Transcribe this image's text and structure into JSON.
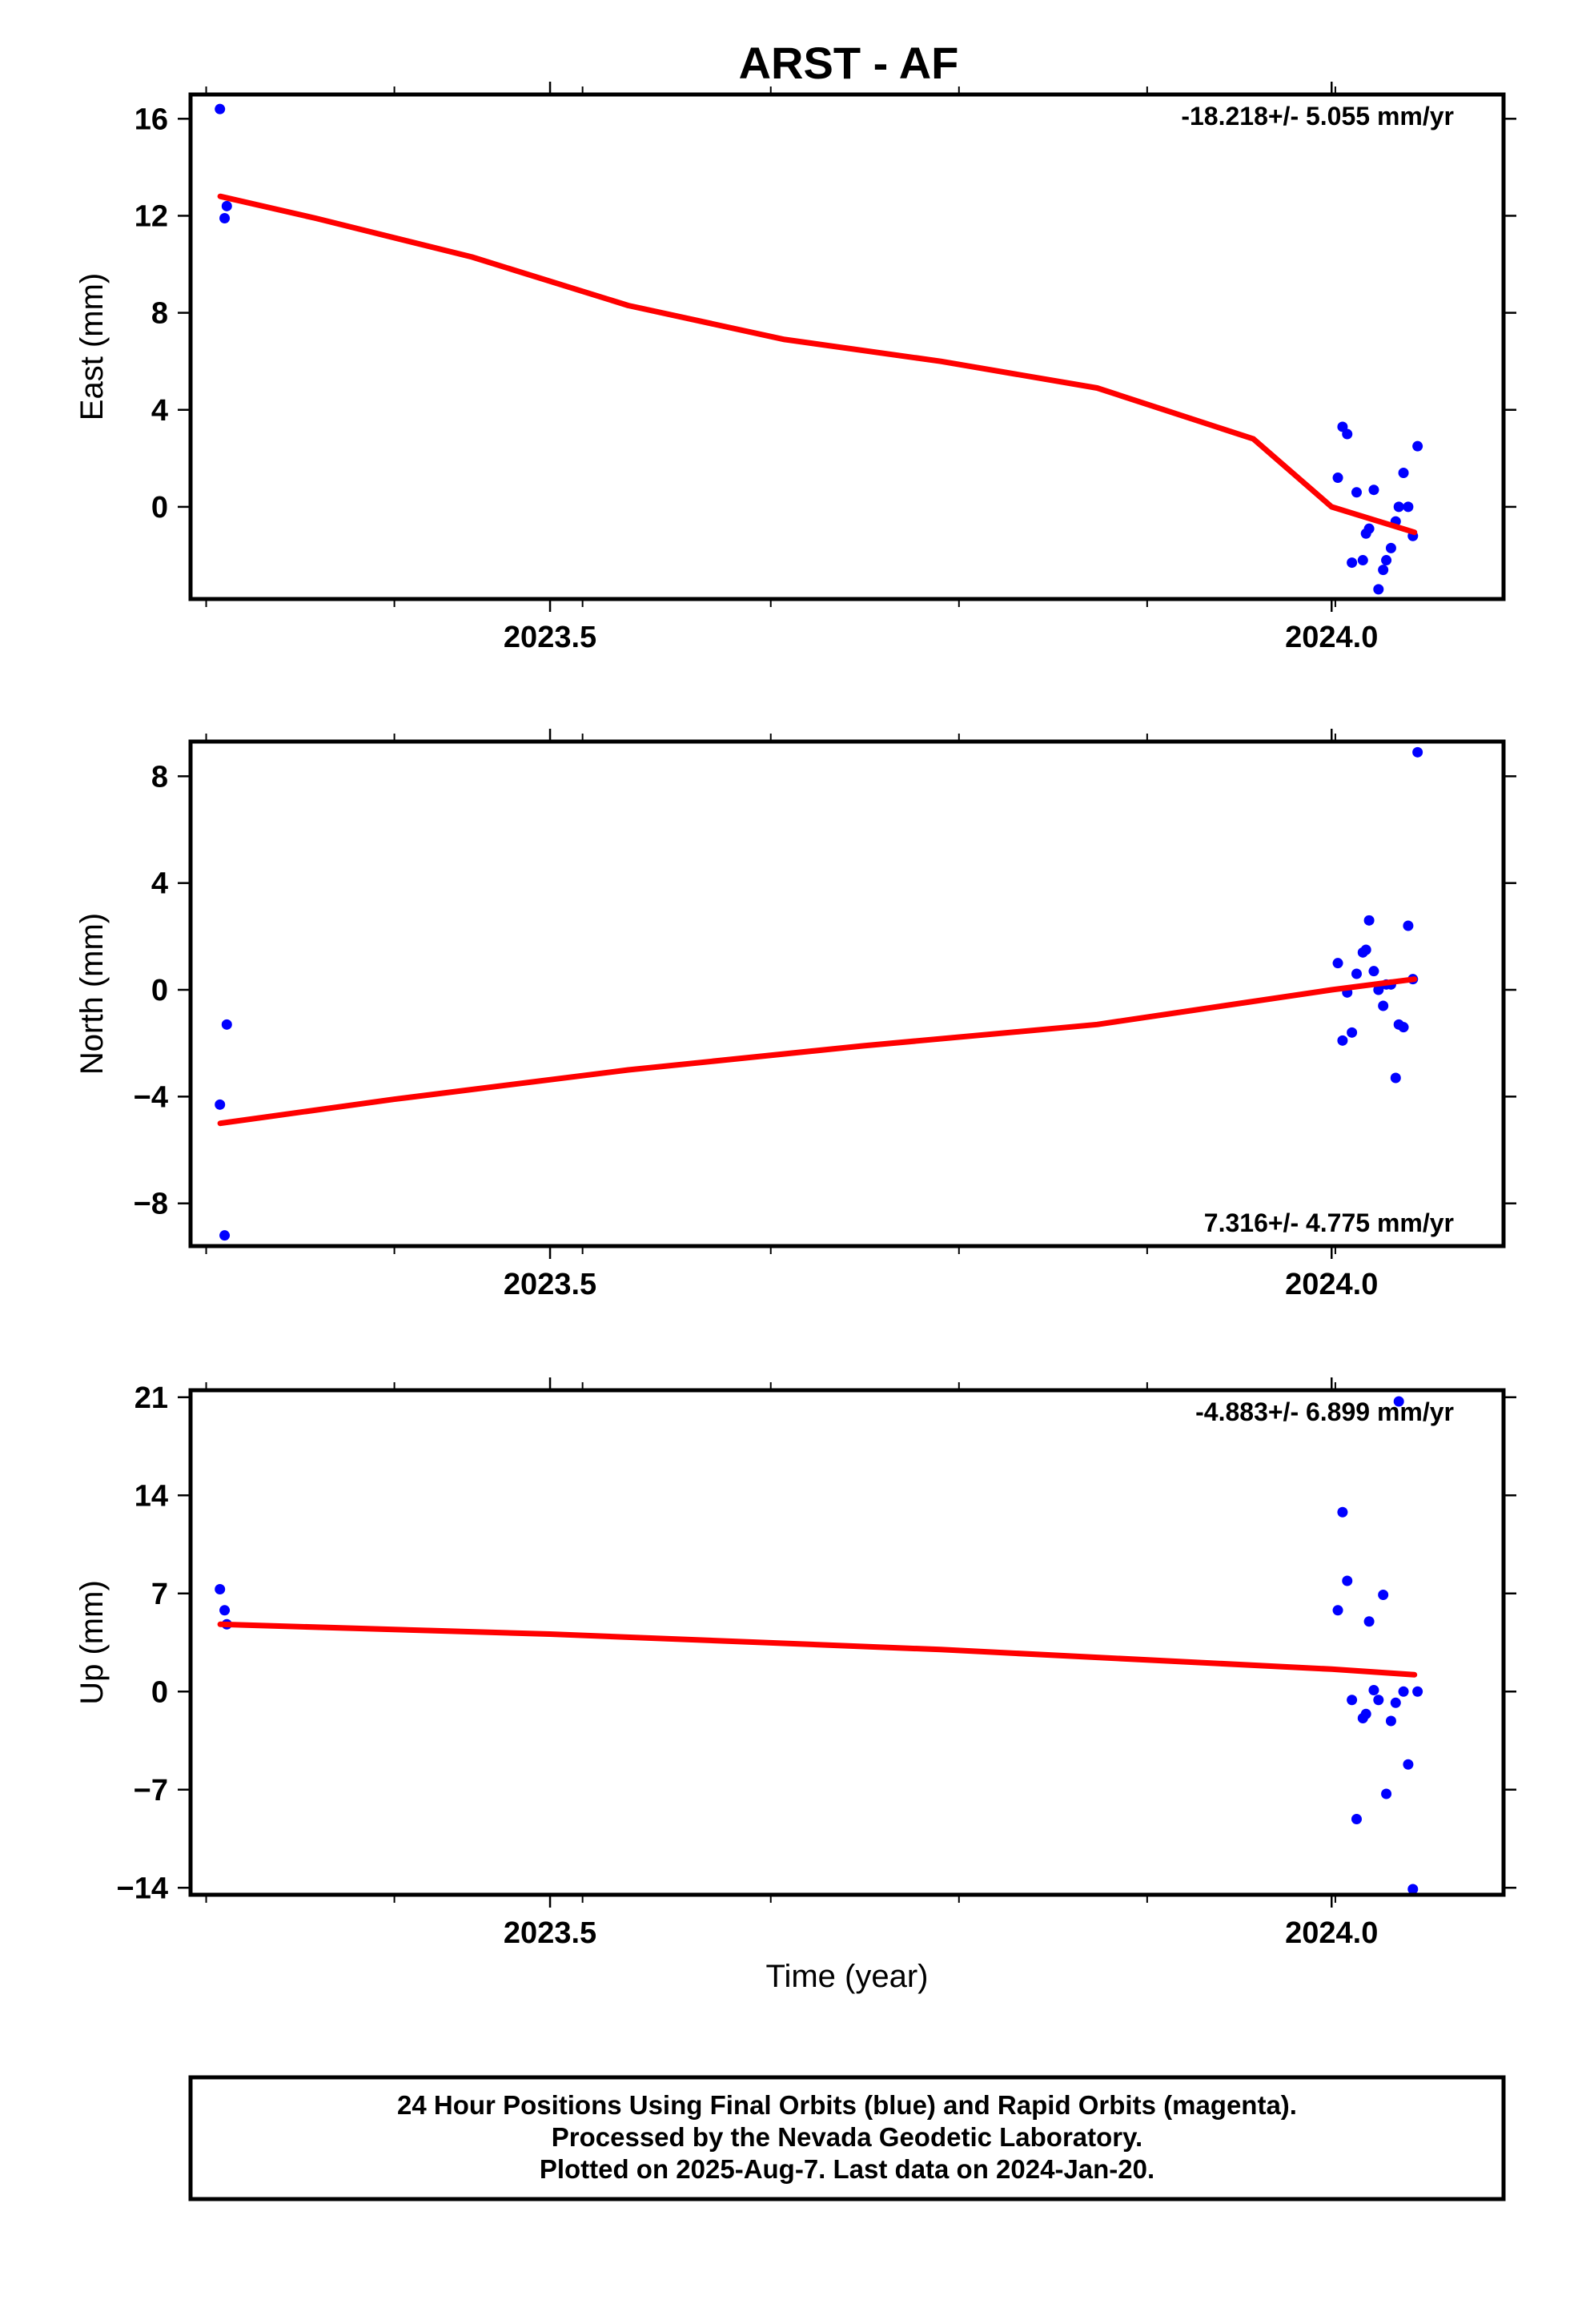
{
  "title": "ARST - AF",
  "xlabel": "Time (year)",
  "footer": {
    "line1": "24 Hour Positions Using Final Orbits (blue) and Rapid Orbits (magenta).",
    "line2": "Processed by the Nevada Geodetic Laboratory.",
    "line3": "Plotted on 2025-Aug-7. Last data on 2024-Jan-20."
  },
  "colors": {
    "points": "#0000ff",
    "fit": "#ff0000",
    "frame": "#000000"
  },
  "chart_data": [
    {
      "type": "scatter",
      "ylabel": "East (mm)",
      "rate_label": "-18.218+/- 5.055 mm/yr",
      "xlim": [
        2023.27,
        2024.11
      ],
      "ylim": [
        -3.8,
        17
      ],
      "x_ticks": [
        2023.5,
        2024.0
      ],
      "x_ticklabels": [
        "2023.5",
        "2024.0"
      ],
      "y_ticks": [
        16,
        12,
        8,
        4,
        0
      ],
      "y_ticklabels": [
        "16",
        "12",
        "8",
        "4",
        "0"
      ],
      "grid": false,
      "points": {
        "x": [
          2023.2888,
          2023.2918,
          2023.2932,
          2024.004,
          2024.007,
          2024.01,
          2024.013,
          2024.016,
          2024.02,
          2024.022,
          2024.024,
          2024.027,
          2024.03,
          2024.033,
          2024.035,
          2024.038,
          2024.041,
          2024.043,
          2024.046,
          2024.049,
          2024.052,
          2024.055
        ],
        "y": [
          16.4,
          11.9,
          12.4,
          1.2,
          3.3,
          3.0,
          -2.3,
          0.6,
          -2.2,
          -1.1,
          -0.9,
          0.7,
          -3.4,
          -2.6,
          -2.2,
          -1.7,
          -0.6,
          0.0,
          1.4,
          0.0,
          -1.2,
          2.5
        ]
      },
      "fit": {
        "x": [
          2023.289,
          2023.35,
          2023.45,
          2023.55,
          2023.65,
          2023.75,
          2023.85,
          2023.95,
          2024.0,
          2024.053
        ],
        "y": [
          12.8,
          11.9,
          10.3,
          8.3,
          6.9,
          6.0,
          4.9,
          2.8,
          0.0,
          -1.05
        ]
      }
    },
    {
      "type": "scatter",
      "ylabel": "North (mm)",
      "rate_label": "7.316+/- 4.775 mm/yr",
      "xlim": [
        2023.27,
        2024.11
      ],
      "ylim": [
        -9.6,
        9.3
      ],
      "x_ticks": [
        2023.5,
        2024.0
      ],
      "x_ticklabels": [
        "2023.5",
        "2024.0"
      ],
      "y_ticks": [
        8,
        4,
        0,
        -4,
        -8
      ],
      "y_ticklabels": [
        "8",
        "4",
        "0",
        "−4",
        "−8"
      ],
      "grid": false,
      "points": {
        "x": [
          2023.2888,
          2023.2918,
          2023.2932,
          2024.004,
          2024.007,
          2024.01,
          2024.013,
          2024.016,
          2024.02,
          2024.022,
          2024.024,
          2024.027,
          2024.03,
          2024.033,
          2024.035,
          2024.038,
          2024.041,
          2024.043,
          2024.046,
          2024.049,
          2024.052,
          2024.055
        ],
        "y": [
          -4.3,
          -9.2,
          -1.3,
          1.0,
          -1.9,
          -0.1,
          -1.6,
          0.6,
          1.4,
          1.5,
          2.6,
          0.7,
          0.0,
          -0.6,
          0.2,
          0.2,
          -3.3,
          -1.3,
          -1.4,
          2.4,
          0.4,
          8.9
        ]
      },
      "fit": {
        "x": [
          2023.289,
          2023.4,
          2023.55,
          2023.7,
          2023.85,
          2024.0,
          2024.053
        ],
        "y": [
          -5.0,
          -4.1,
          -3.0,
          -2.1,
          -1.3,
          0.0,
          0.4
        ]
      }
    },
    {
      "type": "scatter",
      "ylabel": "Up (mm)",
      "rate_label": "-4.883+/- 6.899 mm/yr",
      "xlim": [
        2023.27,
        2024.11
      ],
      "ylim": [
        -14.5,
        21.5
      ],
      "x_ticks": [
        2023.5,
        2024.0
      ],
      "x_ticklabels": [
        "2023.5",
        "2024.0"
      ],
      "y_ticks": [
        21,
        14,
        7,
        0,
        -7,
        -14
      ],
      "y_ticklabels": [
        "21",
        "14",
        "7",
        "0",
        "−7",
        "−14"
      ],
      "grid": false,
      "points": {
        "x": [
          2023.2888,
          2023.2918,
          2023.2932,
          2024.004,
          2024.007,
          2024.01,
          2024.013,
          2024.016,
          2024.02,
          2024.022,
          2024.024,
          2024.027,
          2024.03,
          2024.033,
          2024.035,
          2024.038,
          2024.041,
          2024.043,
          2024.046,
          2024.049,
          2024.052,
          2024.055
        ],
        "y": [
          7.3,
          5.8,
          4.8,
          5.8,
          12.8,
          7.9,
          -0.6,
          -9.1,
          -1.9,
          -1.6,
          5.0,
          0.1,
          -0.6,
          6.9,
          -7.3,
          -2.1,
          -0.8,
          20.7,
          0.0,
          -5.2,
          -14.1,
          0.0
        ]
      },
      "fit": {
        "x": [
          2023.289,
          2023.5,
          2023.75,
          2024.0,
          2024.053
        ],
        "y": [
          4.8,
          4.1,
          3.0,
          1.6,
          1.2
        ]
      }
    }
  ]
}
